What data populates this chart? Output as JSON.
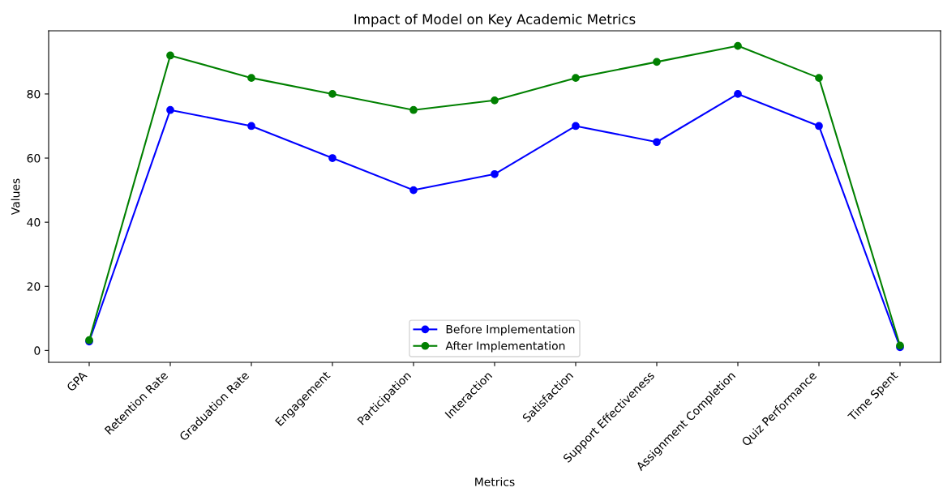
{
  "chart_data": {
    "type": "line",
    "title": "Impact of Model on Key Academic Metrics",
    "xlabel": "Metrics",
    "ylabel": "Values",
    "categories": [
      "GPA",
      "Retention Rate",
      "Graduation Rate",
      "Engagement",
      "Participation",
      "Interaction",
      "Satisfaction",
      "Support Effectiveness",
      "Assignment Completion",
      "Quiz Performance",
      "Time Spent"
    ],
    "series": [
      {
        "name": "Before Implementation",
        "color": "#0000ff",
        "values": [
          2.8,
          75,
          70,
          60,
          50,
          55,
          70,
          65,
          80,
          70,
          1
        ]
      },
      {
        "name": "After Implementation",
        "color": "#008000",
        "values": [
          3.2,
          92,
          85,
          80,
          75,
          78,
          85,
          90,
          95,
          85,
          1.5
        ]
      }
    ],
    "ylim": [
      -3.7,
      99.7
    ],
    "yticks": [
      0,
      20,
      40,
      60,
      80
    ],
    "grid": false,
    "legend": "bottom",
    "marker": "circle",
    "line_style": "solid"
  }
}
